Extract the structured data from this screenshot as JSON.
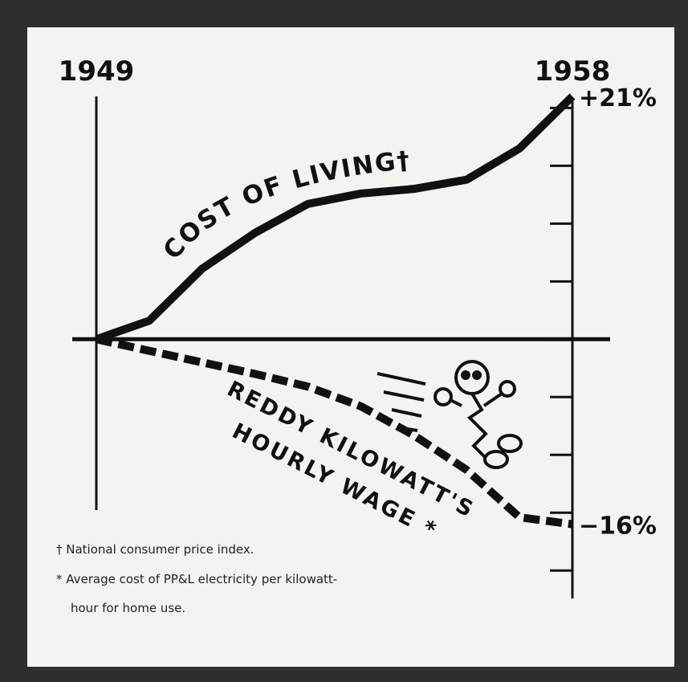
{
  "chart_data": {
    "type": "line",
    "x": [
      1949,
      1950,
      1951,
      1952,
      1953,
      1954,
      1955,
      1956,
      1957,
      1958
    ],
    "xlim": [
      1949,
      1958
    ],
    "xticks": [
      1949,
      1958
    ],
    "ylim": [
      -22,
      21
    ],
    "yticks": [
      -20,
      -15,
      -10,
      -5,
      0,
      5,
      10,
      15,
      20
    ],
    "series": [
      {
        "name": "COST OF LIVING†",
        "color": "#111111",
        "style": "solid",
        "values": [
          0,
          1.6,
          6.1,
          9.2,
          11.7,
          12.6,
          13.0,
          13.8,
          16.5,
          21
        ],
        "value_labels": [
          null,
          null,
          null,
          null,
          null,
          null,
          null,
          null,
          null,
          "+21%"
        ]
      },
      {
        "name": "REDDY KILOWATT'S HOURLY WAGE *",
        "color": "#111111",
        "style": "dashed",
        "values": [
          0,
          -1.0,
          -2.0,
          -3.0,
          -4.1,
          -5.8,
          -8.3,
          -11.3,
          -15.4,
          -16
        ],
        "value_labels": [
          null,
          null,
          null,
          null,
          null,
          null,
          null,
          null,
          null,
          "−16%"
        ]
      }
    ],
    "notes": [
      "† National consumer price index.",
      "* Average cost of PP&L electricity per kilowatt-hour for home use."
    ]
  }
}
